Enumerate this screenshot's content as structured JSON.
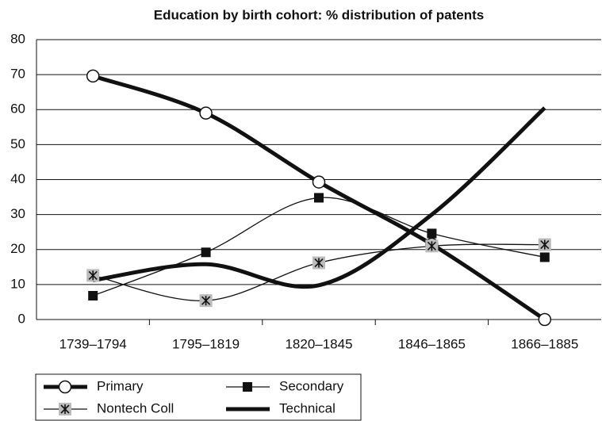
{
  "chart_data": {
    "type": "line",
    "title": "Education by birth cohort: % distribution of patents",
    "categories": [
      "1739–1794",
      "1795–1819",
      "1820–1845",
      "1846–1865",
      "1866–1885"
    ],
    "series": [
      {
        "name": "Primary",
        "color": "#111111",
        "marker": "circle",
        "line_width": 5,
        "values": [
          69.6,
          59,
          39.3,
          21.5,
          0
        ]
      },
      {
        "name": "Secondary",
        "color": "#111111",
        "marker": "square",
        "line_width": 1.3,
        "values": [
          6.8,
          19.2,
          34.8,
          24.6,
          17.8
        ]
      },
      {
        "name": "Nontech Coll",
        "color": "#111111",
        "marker": "star-square",
        "line_width": 1.3,
        "values": [
          12.6,
          5.4,
          16.2,
          21,
          21.4
        ]
      },
      {
        "name": "Technical",
        "color": "#111111",
        "marker": "none",
        "line_width": 5,
        "values": [
          11.2,
          15.8,
          9.8,
          30,
          60.5
        ]
      }
    ],
    "ylim": [
      0,
      80
    ],
    "yticks": [
      0,
      10,
      20,
      30,
      40,
      50,
      60,
      70,
      80
    ],
    "grid": true
  }
}
